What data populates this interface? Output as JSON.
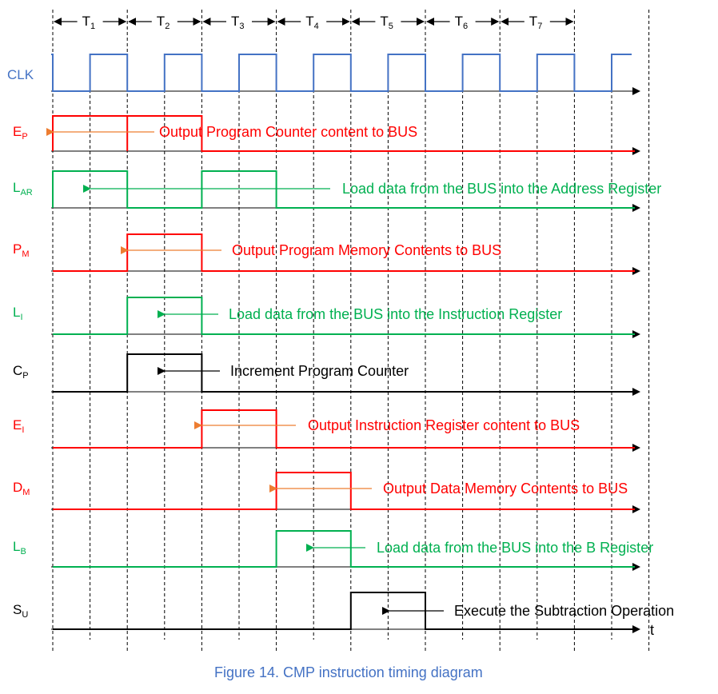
{
  "colors": {
    "clk": "#4472c4",
    "red": "#ff0000",
    "green": "#00b050",
    "black": "#000000",
    "orange": "#ed7d31",
    "caption": "#4472c4"
  },
  "periods": [
    {
      "main": "T",
      "sub": "1"
    },
    {
      "main": "T",
      "sub": "2"
    },
    {
      "main": "T",
      "sub": "3"
    },
    {
      "main": "T",
      "sub": "4"
    },
    {
      "main": "T",
      "sub": "5"
    },
    {
      "main": "T",
      "sub": "6"
    },
    {
      "main": "T",
      "sub": "7"
    }
  ],
  "signals": [
    {
      "main": "CLK",
      "sub": "",
      "color": "clk"
    },
    {
      "main": "E",
      "sub": "P",
      "color": "red",
      "active": [
        1,
        2
      ],
      "annotation": "Output Program Counter content to BUS"
    },
    {
      "main": "L",
      "sub": "AR",
      "color": "green",
      "active": [
        1,
        3
      ],
      "annotation": "Load data from the BUS into the Address Register"
    },
    {
      "main": "P",
      "sub": "M",
      "color": "red",
      "active": [
        2
      ],
      "annotation": "Output Program Memory Contents to BUS"
    },
    {
      "main": "L",
      "sub": "I",
      "color": "green",
      "active": [
        2
      ],
      "annotation": "Load data from the BUS into the Instruction Register"
    },
    {
      "main": "C",
      "sub": "P",
      "color": "black",
      "active": [
        2
      ],
      "annotation": "Increment Program Counter"
    },
    {
      "main": "E",
      "sub": "I",
      "color": "red",
      "active": [
        3
      ],
      "annotation": "Output Instruction Register content to BUS"
    },
    {
      "main": "D",
      "sub": "M",
      "color": "red",
      "active": [
        4
      ],
      "annotation": "Output Data Memory Contents to BUS"
    },
    {
      "main": "L",
      "sub": "B",
      "color": "green",
      "active": [
        4
      ],
      "annotation": "Load data from the BUS into the B Register"
    },
    {
      "main": "S",
      "sub": "U",
      "color": "black",
      "active": [
        5
      ],
      "annotation": "Execute the Subtraction Operation"
    }
  ],
  "time_axis_label": "t",
  "caption": "Figure 14.  CMP instruction timing diagram"
}
